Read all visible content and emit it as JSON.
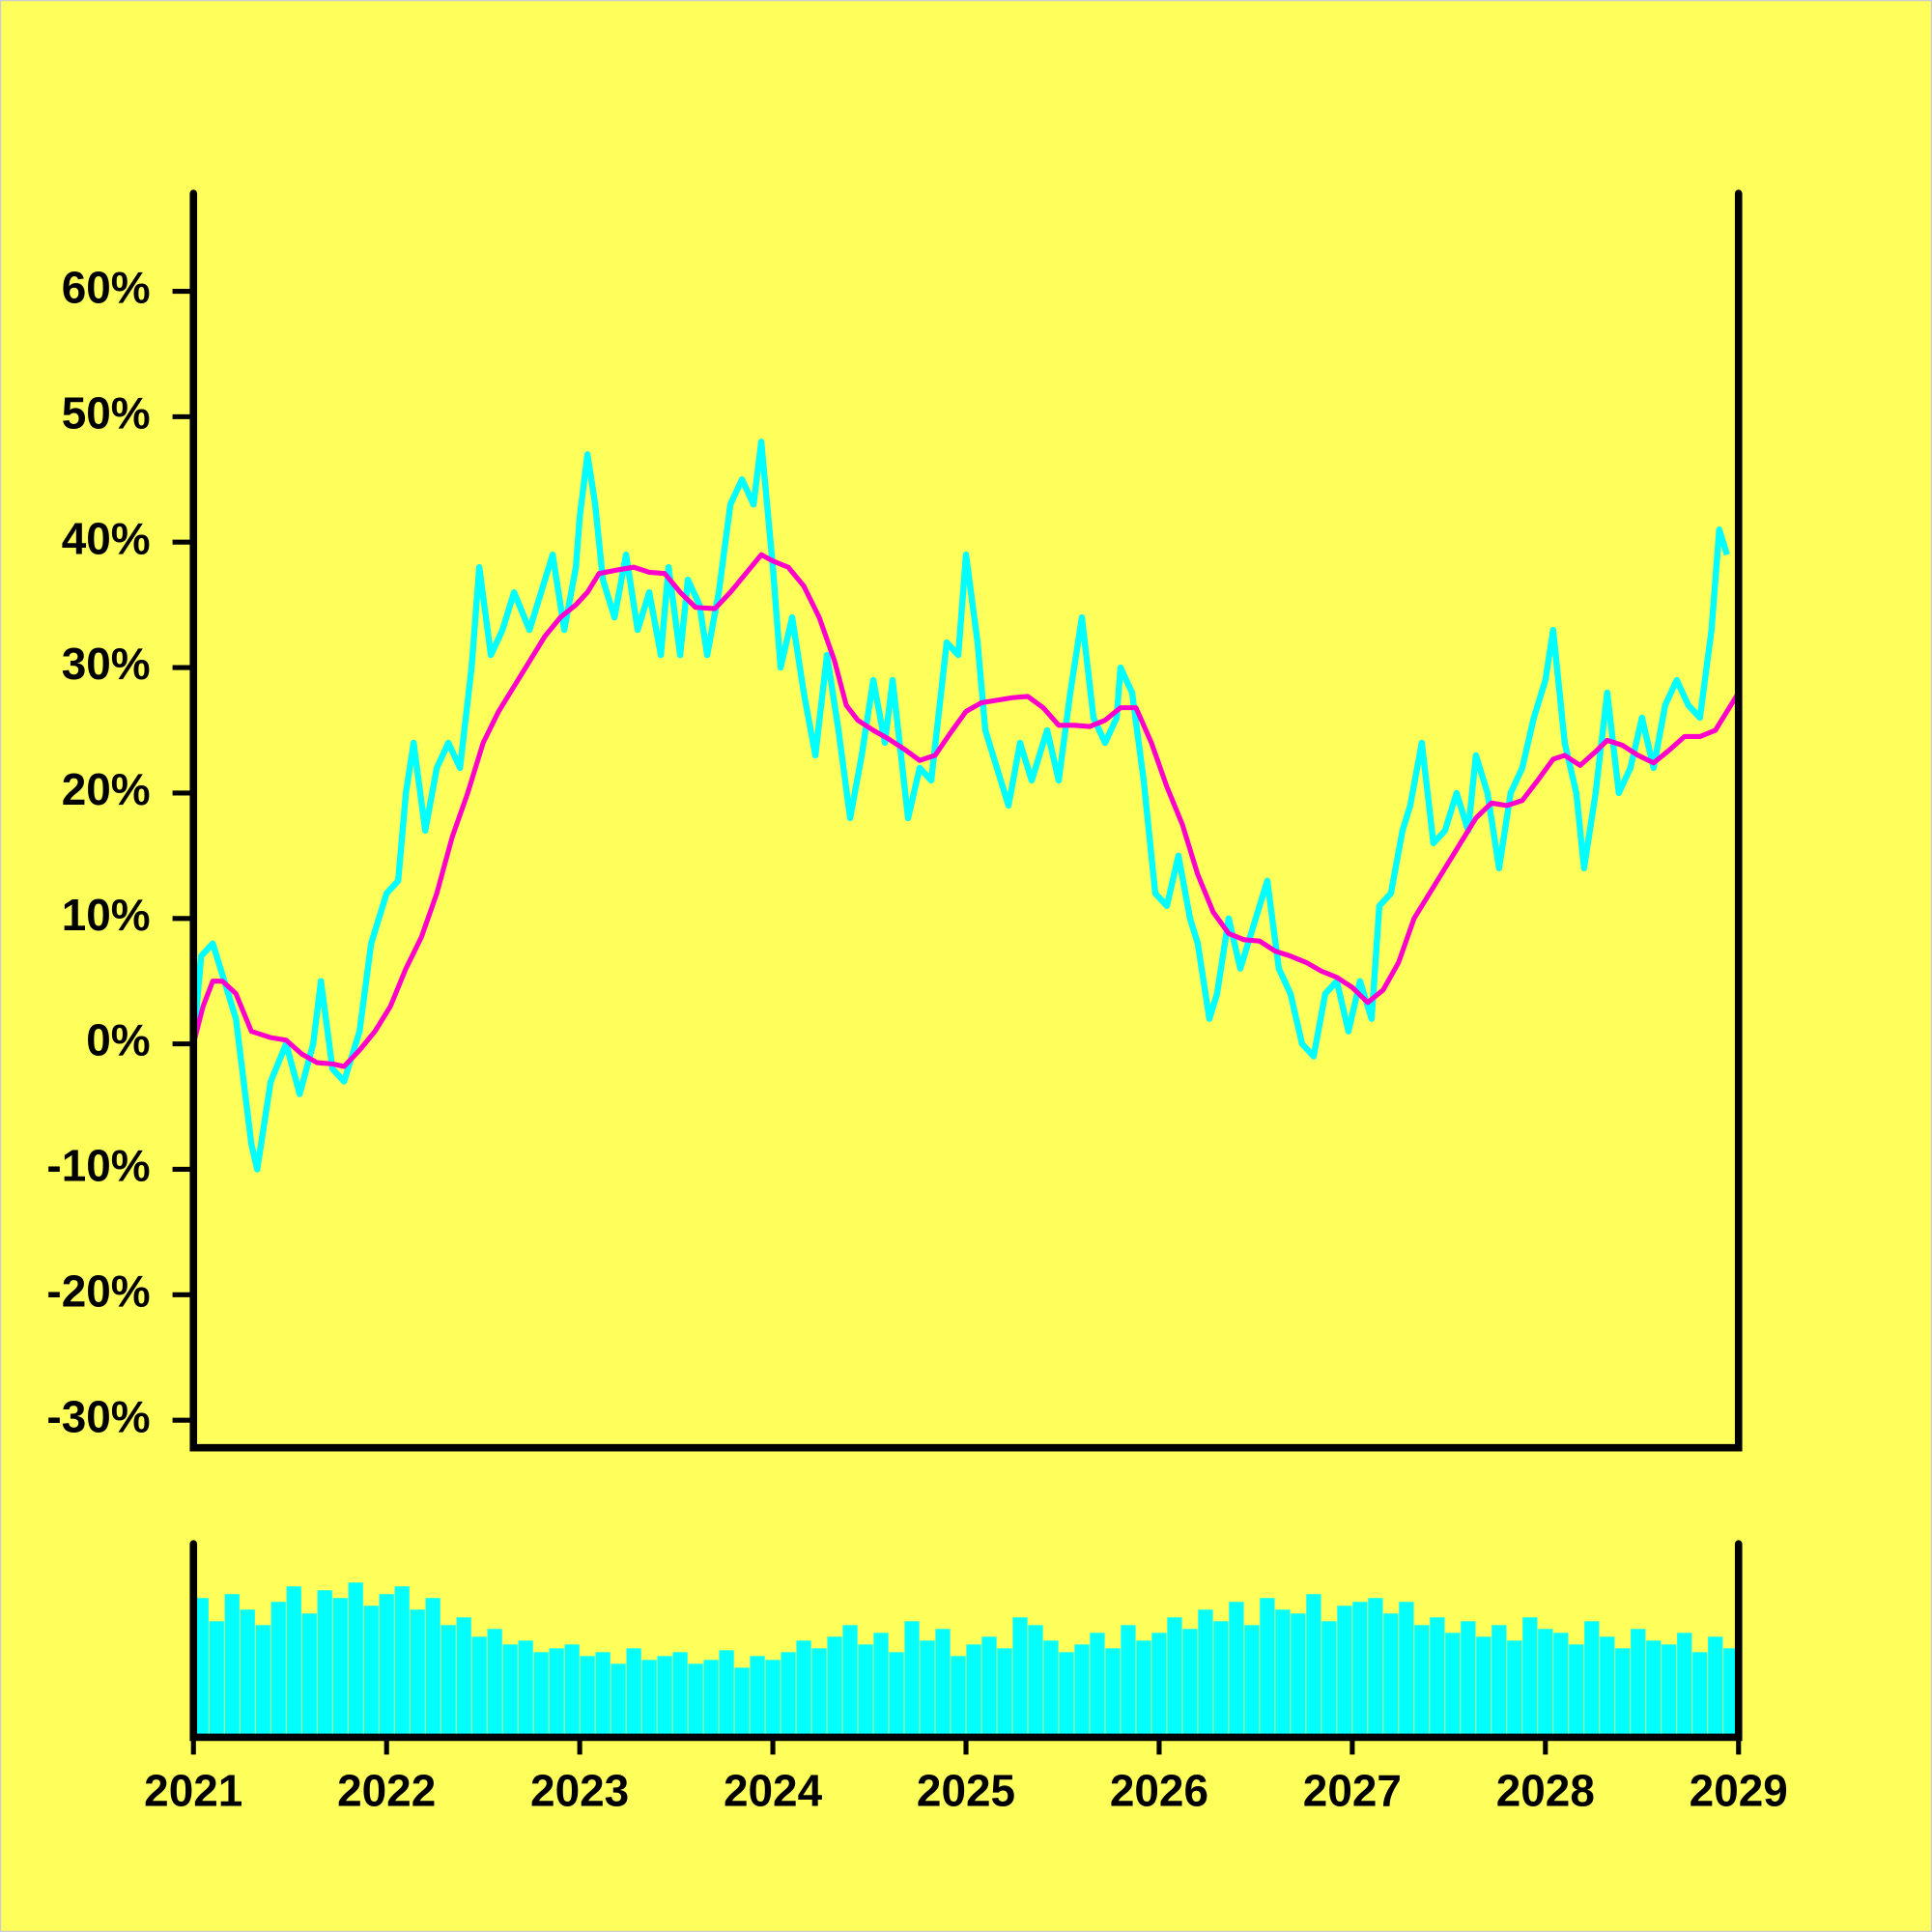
{
  "chart_data": [
    {
      "type": "line",
      "xlim": [
        2021,
        2029
      ],
      "ylim": [
        -32.2,
        67.8
      ],
      "yticks": [
        {
          "value": -30,
          "label": "-30%"
        },
        {
          "value": -20,
          "label": "-20%"
        },
        {
          "value": -10,
          "label": "-10%"
        },
        {
          "value": 0,
          "label": "0%"
        },
        {
          "value": 10,
          "label": "10%"
        },
        {
          "value": 20,
          "label": "20%"
        },
        {
          "value": 30,
          "label": "30%"
        },
        {
          "value": 40,
          "label": "40%"
        },
        {
          "value": 50,
          "label": "50%"
        },
        {
          "value": 60,
          "label": "60%"
        }
      ],
      "series": [
        {
          "color": "#00ffff",
          "x": [
            2021.0,
            2021.04,
            2021.1,
            2021.16,
            2021.22,
            2021.3,
            2021.33,
            2021.4,
            2021.48,
            2021.55,
            2021.62,
            2021.66,
            2021.72,
            2021.78,
            2021.86,
            2021.92,
            2022.0,
            2022.06,
            2022.1,
            2022.14,
            2022.2,
            2022.26,
            2022.32,
            2022.38,
            2022.44,
            2022.48,
            2022.54,
            2022.6,
            2022.66,
            2022.74,
            2022.8,
            2022.86,
            2022.92,
            2022.98,
            2023.0,
            2023.04,
            2023.08,
            2023.12,
            2023.18,
            2023.24,
            2023.3,
            2023.36,
            2023.42,
            2023.46,
            2023.52,
            2023.56,
            2023.62,
            2023.66,
            2023.72,
            2023.78,
            2023.84,
            2023.9,
            2023.94,
            2024.0,
            2024.04,
            2024.1,
            2024.16,
            2024.22,
            2024.28,
            2024.34,
            2024.4,
            2024.46,
            2024.52,
            2024.58,
            2024.62,
            2024.7,
            2024.76,
            2024.82,
            2024.9,
            2024.96,
            2025.0,
            2025.06,
            2025.1,
            2025.16,
            2025.22,
            2025.28,
            2025.34,
            2025.42,
            2025.48,
            2025.54,
            2025.6,
            2025.66,
            2025.72,
            2025.78,
            2025.8,
            2025.86,
            2025.92,
            2025.98,
            2026.04,
            2026.1,
            2026.16,
            2026.2,
            2026.26,
            2026.3,
            2026.36,
            2026.42,
            2026.5,
            2026.56,
            2026.62,
            2026.68,
            2026.74,
            2026.8,
            2026.86,
            2026.92,
            2026.98,
            2027.04,
            2027.1,
            2027.14,
            2027.2,
            2027.26,
            2027.3,
            2027.36,
            2027.42,
            2027.48,
            2027.54,
            2027.6,
            2027.64,
            2027.7,
            2027.76,
            2027.82,
            2027.88,
            2027.94,
            2028.0,
            2028.04,
            2028.1,
            2028.16,
            2028.2,
            2028.26,
            2028.32,
            2028.38,
            2028.44,
            2028.5,
            2028.56,
            2028.62,
            2028.68,
            2028.74,
            2028.8,
            2028.86,
            2028.9,
            2028.94
          ],
          "values": [
            0,
            7,
            8,
            5,
            2,
            -8,
            -10,
            -3,
            0,
            -4,
            0,
            5,
            -2,
            -3,
            1,
            8,
            12,
            13,
            20,
            24,
            17,
            22,
            24,
            22,
            30,
            38,
            31,
            33,
            36,
            33,
            36,
            39,
            33,
            38,
            42,
            47,
            43,
            37,
            34,
            39,
            33,
            36,
            31,
            38,
            31,
            37,
            35,
            31,
            36,
            43,
            45,
            43,
            48,
            38,
            30,
            34,
            28,
            23,
            31,
            25,
            18,
            23,
            29,
            24,
            29,
            18,
            22,
            21,
            32,
            31,
            39,
            32,
            25,
            22,
            19,
            24,
            21,
            25,
            21,
            28,
            34,
            26,
            24,
            26,
            30,
            28,
            21,
            12,
            11,
            15,
            10,
            8,
            2,
            4,
            10,
            6,
            10,
            13,
            6,
            4,
            0,
            -1,
            4,
            5,
            1,
            5,
            2,
            11,
            12,
            17,
            19,
            24,
            16,
            17,
            20,
            17,
            23,
            20,
            14,
            20,
            22,
            26,
            29,
            33,
            24,
            20,
            14,
            20,
            28,
            20,
            22,
            26,
            22,
            27,
            29,
            27,
            26,
            33,
            41,
            39
          ]
        },
        {
          "color": "#ff00cc",
          "x": [
            2021.0,
            2021.05,
            2021.1,
            2021.15,
            2021.22,
            2021.3,
            2021.4,
            2021.48,
            2021.56,
            2021.64,
            2021.72,
            2021.78,
            2021.86,
            2021.94,
            2022.02,
            2022.1,
            2022.18,
            2022.26,
            2022.34,
            2022.42,
            2022.5,
            2022.58,
            2022.66,
            2022.74,
            2022.82,
            2022.9,
            2022.98,
            2023.04,
            2023.1,
            2023.2,
            2023.28,
            2023.36,
            2023.44,
            2023.52,
            2023.6,
            2023.7,
            2023.78,
            2023.86,
            2023.94,
            2024.0,
            2024.08,
            2024.16,
            2024.24,
            2024.32,
            2024.38,
            2024.44,
            2024.52,
            2024.6,
            2024.68,
            2024.76,
            2024.84,
            2024.92,
            2025.0,
            2025.08,
            2025.16,
            2025.24,
            2025.32,
            2025.4,
            2025.48,
            2025.56,
            2025.64,
            2025.72,
            2025.8,
            2025.88,
            2025.96,
            2026.04,
            2026.12,
            2026.2,
            2026.28,
            2026.36,
            2026.44,
            2026.52,
            2026.6,
            2026.68,
            2026.76,
            2026.84,
            2026.92,
            2027.0,
            2027.08,
            2027.16,
            2027.24,
            2027.32,
            2027.4,
            2027.48,
            2027.56,
            2027.64,
            2027.72,
            2027.8,
            2027.88,
            2027.96,
            2028.04,
            2028.1,
            2028.18,
            2028.26,
            2028.32,
            2028.4,
            2028.48,
            2028.56,
            2028.64,
            2028.72,
            2028.8,
            2028.88,
            2028.96,
            2029.0
          ],
          "values": [
            0,
            3,
            5,
            5,
            4,
            1,
            0.5,
            0.3,
            -0.8,
            -1.5,
            -1.6,
            -1.8,
            -0.5,
            1,
            3,
            6,
            8.5,
            12,
            16.5,
            20,
            24,
            26.5,
            28.5,
            30.5,
            32.5,
            34,
            35,
            36,
            37.5,
            37.8,
            38,
            37.6,
            37.5,
            36,
            34.8,
            34.7,
            36,
            37.5,
            39,
            38.5,
            38,
            36.5,
            34,
            30.5,
            27,
            25.8,
            25,
            24.3,
            23.5,
            22.6,
            23,
            24.8,
            26.5,
            27.2,
            27.4,
            27.6,
            27.7,
            26.8,
            25.4,
            25.4,
            25.3,
            25.8,
            26.8,
            26.8,
            24,
            20.5,
            17.5,
            13.5,
            10.5,
            8.8,
            8.3,
            8.2,
            7.4,
            7,
            6.5,
            5.8,
            5.3,
            4.5,
            3.3,
            4.3,
            6.5,
            10,
            12,
            14,
            16,
            18,
            19.2,
            19,
            19.4,
            21,
            22.7,
            23,
            22.2,
            23.3,
            24.2,
            23.8,
            23,
            22.4,
            23.4,
            24.5,
            24.5,
            25,
            27,
            28
          ]
        }
      ]
    },
    {
      "type": "bar",
      "color": "#00ffff",
      "xlim": [
        2021,
        2029
      ],
      "ylim": [
        0,
        100
      ],
      "xticks": [
        2021,
        2022,
        2023,
        2024,
        2025,
        2026,
        2027,
        2028,
        2029
      ],
      "x": [
        2021.04,
        2021.12,
        2021.2,
        2021.28,
        2021.36,
        2021.44,
        2021.52,
        2021.6,
        2021.68,
        2021.76,
        2021.84,
        2021.92,
        2022.0,
        2022.08,
        2022.16,
        2022.24,
        2022.32,
        2022.4,
        2022.48,
        2022.56,
        2022.64,
        2022.72,
        2022.8,
        2022.88,
        2022.96,
        2023.04,
        2023.12,
        2023.2,
        2023.28,
        2023.36,
        2023.44,
        2023.52,
        2023.6,
        2023.68,
        2023.76,
        2023.84,
        2023.92,
        2024.0,
        2024.08,
        2024.16,
        2024.24,
        2024.32,
        2024.4,
        2024.48,
        2024.56,
        2024.64,
        2024.72,
        2024.8,
        2024.88,
        2024.96,
        2025.04,
        2025.12,
        2025.2,
        2025.28,
        2025.36,
        2025.44,
        2025.52,
        2025.6,
        2025.68,
        2025.76,
        2025.84,
        2025.92,
        2026.0,
        2026.08,
        2026.16,
        2026.24,
        2026.32,
        2026.4,
        2026.48,
        2026.56,
        2026.64,
        2026.72,
        2026.8,
        2026.88,
        2026.96,
        2027.04,
        2027.12,
        2027.2,
        2027.28,
        2027.36,
        2027.44,
        2027.52,
        2027.6,
        2027.68,
        2027.76,
        2027.84,
        2027.92,
        2028.0,
        2028.08,
        2028.16,
        2028.24,
        2028.32,
        2028.4,
        2028.48,
        2028.56,
        2028.64,
        2028.72,
        2028.8,
        2028.88,
        2028.96
      ],
      "values": [
        72,
        60,
        74,
        66,
        58,
        70,
        78,
        64,
        76,
        72,
        80,
        68,
        74,
        78,
        66,
        72,
        58,
        62,
        52,
        56,
        48,
        50,
        44,
        46,
        48,
        42,
        44,
        38,
        46,
        40,
        42,
        44,
        38,
        40,
        45,
        36,
        42,
        40,
        44,
        50,
        46,
        52,
        58,
        48,
        54,
        44,
        60,
        50,
        56,
        42,
        48,
        52,
        46,
        62,
        58,
        50,
        44,
        48,
        54,
        46,
        58,
        50,
        54,
        62,
        56,
        66,
        60,
        70,
        58,
        72,
        66,
        64,
        74,
        60,
        68,
        70,
        72,
        64,
        70,
        58,
        62,
        54,
        60,
        52,
        58,
        50,
        62,
        56,
        54,
        48,
        60,
        52,
        46,
        56,
        50,
        48,
        54,
        44,
        52,
        46
      ]
    }
  ]
}
